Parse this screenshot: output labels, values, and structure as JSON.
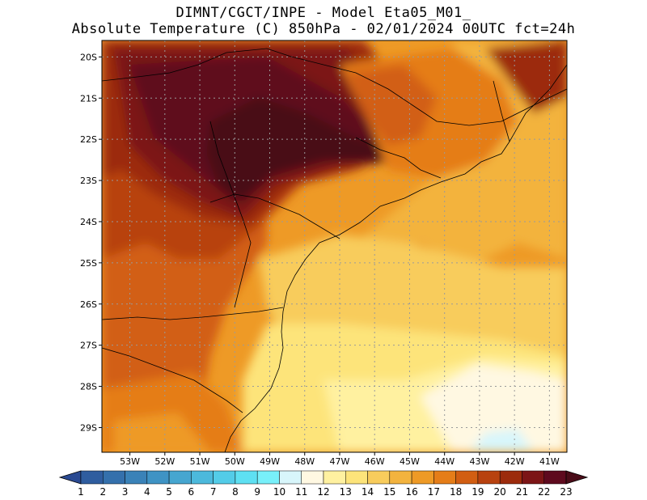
{
  "title": {
    "line1": "DIMNT/CGCT/INPE -  Model Eta05_M01_",
    "line2": "Absolute Temperature (C) 850hPa -  02/01/2024 00UTC fct=24h"
  },
  "map": {
    "lon_range": [
      -53.8,
      -40.5
    ],
    "lat_range": [
      -29.6,
      -19.6
    ],
    "lat_ticks": [
      {
        "value": -20,
        "label": "20S"
      },
      {
        "value": -21,
        "label": "21S"
      },
      {
        "value": -22,
        "label": "22S"
      },
      {
        "value": -23,
        "label": "23S"
      },
      {
        "value": -24,
        "label": "24S"
      },
      {
        "value": -25,
        "label": "25S"
      },
      {
        "value": -26,
        "label": "26S"
      },
      {
        "value": -27,
        "label": "27S"
      },
      {
        "value": -28,
        "label": "28S"
      },
      {
        "value": -29,
        "label": "29S"
      }
    ],
    "lon_ticks": [
      {
        "value": -53,
        "label": "53W"
      },
      {
        "value": -52,
        "label": "52W"
      },
      {
        "value": -51,
        "label": "51W"
      },
      {
        "value": -50,
        "label": "50W"
      },
      {
        "value": -49,
        "label": "49W"
      },
      {
        "value": -48,
        "label": "48W"
      },
      {
        "value": -47,
        "label": "47W"
      },
      {
        "value": -46,
        "label": "46W"
      },
      {
        "value": -45,
        "label": "45W"
      },
      {
        "value": -44,
        "label": "44W"
      },
      {
        "value": -43,
        "label": "43W"
      },
      {
        "value": -42,
        "label": "42W"
      },
      {
        "value": -41,
        "label": "41W"
      }
    ]
  },
  "colorbar": {
    "labels": [
      "1",
      "2",
      "3",
      "4",
      "5",
      "6",
      "7",
      "8",
      "9",
      "10",
      "11",
      "12",
      "13",
      "14",
      "15",
      "16",
      "17",
      "18",
      "19",
      "20",
      "21",
      "22",
      "23"
    ],
    "colors": [
      "#2a4a92",
      "#2f5d9f",
      "#3470ac",
      "#3a82b8",
      "#3f93c4",
      "#46a6d0",
      "#4cb9dc",
      "#53cce8",
      "#5ee0f2",
      "#78f0fa",
      "#d8f6fb",
      "#fff8e2",
      "#fff1a0",
      "#fde47a",
      "#f8cc5c",
      "#f3b33e",
      "#ee9a26",
      "#e57d18",
      "#d25e12",
      "#b8420f",
      "#9c2b0c",
      "#7c1516",
      "#5e0a1e",
      "#4a0c18"
    ]
  }
}
